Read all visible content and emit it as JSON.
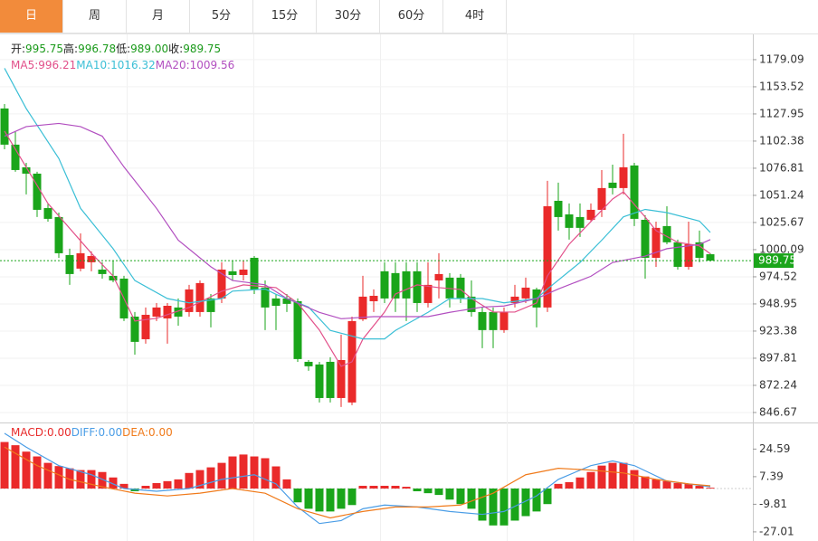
{
  "tabs": [
    "日",
    "周",
    "月",
    "5分",
    "15分",
    "30分",
    "60分",
    "4时"
  ],
  "selected_tab": 0,
  "chart_data": [
    {
      "type": "candlestick",
      "ohlc_legend": [
        {
          "label": "开:",
          "value": "995.75"
        },
        {
          "label": "高:",
          "value": "996.78"
        },
        {
          "label": "低:",
          "value": "989.00"
        },
        {
          "label": "收:",
          "value": "989.75"
        }
      ],
      "ohlc_legend_color": "#1a9a1a",
      "up_color": "#ea2a2a",
      "down_color": "#1aa51a",
      "open": [
        1133.1,
        1099.0,
        1077.7,
        1071.7,
        1039.3,
        1030.8,
        995.0,
        982.2,
        988.2,
        981.3,
        975.4,
        972.8,
        937.0,
        915.7,
        937.0,
        935.3,
        945.6,
        941.3,
        941.3,
        954.1,
        954.1,
        979.7,
        976.2,
        992.4,
        964.3,
        954.1,
        954.1,
        951.5,
        894.4,
        891.9,
        894.4,
        860.3,
        856.1,
        934.5,
        951.5,
        979.7,
        978.0,
        979.7,
        979.7,
        949.8,
        971.1,
        973.7,
        973.7,
        955.8,
        941.3,
        941.3,
        924.3,
        949.8,
        954.1,
        962.6,
        945.6,
        1046.1,
        1033.3,
        1030.8,
        1028.2,
        1037.6,
        1063.2,
        1058.1,
        1079.4,
        1028.2,
        992.4,
        1022.3,
        1007.0,
        983.9,
        1007.0,
        995.75
      ],
      "high": [
        1137.3,
        1111.8,
        1081.9,
        1073.4,
        1043.6,
        1035.0,
        1001.0,
        1015.4,
        998.4,
        988.2,
        989.9,
        975.4,
        941.3,
        945.6,
        949.8,
        949.8,
        954.1,
        966.9,
        971.1,
        958.3,
        988.2,
        989.9,
        989.9,
        994.1,
        971.1,
        958.3,
        958.3,
        954.1,
        896.1,
        894.4,
        898.7,
        920.0,
        937.0,
        975.4,
        962.6,
        988.2,
        988.2,
        988.2,
        988.2,
        988.2,
        996.7,
        978.0,
        977.1,
        971.1,
        945.6,
        945.6,
        945.6,
        966.9,
        973.7,
        964.3,
        1064.9,
        1063.2,
        1043.6,
        1043.6,
        1043.6,
        1075.1,
        1080.2,
        1109.2,
        1081.9,
        1032.5,
        1026.5,
        1041.0,
        1009.5,
        1026.5,
        1018.0,
        996.78
      ],
      "low": [
        1094.7,
        1073.4,
        1052.1,
        1030.8,
        1026.5,
        992.4,
        966.9,
        979.7,
        979.7,
        972.8,
        969.4,
        932.8,
        901.2,
        911.5,
        932.8,
        911.5,
        928.5,
        937.0,
        937.0,
        926.8,
        949.8,
        971.1,
        971.1,
        958.3,
        924.3,
        924.3,
        941.3,
        894.4,
        885.9,
        856.1,
        856.1,
        851.8,
        853.5,
        932.8,
        941.3,
        949.8,
        941.3,
        932.8,
        941.3,
        945.6,
        954.1,
        945.6,
        949.8,
        937.0,
        907.2,
        907.2,
        921.7,
        945.6,
        949.8,
        926.8,
        941.3,
        1018.0,
        1009.5,
        1012.1,
        1026.5,
        1030.8,
        1052.1,
        1052.1,
        1022.3,
        972.8,
        983.9,
        1005.2,
        981.3,
        981.3,
        988.2,
        989.0
      ],
      "close": [
        1099.0,
        1075.1,
        1071.7,
        1037.6,
        1029.1,
        996.7,
        977.1,
        996.7,
        994.1,
        977.1,
        971.1,
        935.3,
        913.2,
        938.7,
        945.6,
        947.2,
        937.0,
        962.6,
        968.6,
        941.3,
        981.3,
        976.2,
        981.3,
        962.6,
        945.6,
        947.2,
        949.0,
        897.0,
        890.2,
        860.3,
        860.3,
        896.1,
        932.8,
        955.8,
        956.6,
        954.1,
        954.1,
        954.1,
        949.8,
        966.9,
        977.1,
        954.1,
        954.1,
        941.3,
        924.3,
        924.3,
        941.3,
        955.8,
        964.3,
        945.6,
        1041.0,
        1030.8,
        1020.6,
        1020.6,
        1037.6,
        1058.1,
        1058.1,
        1077.7,
        1029.1,
        992.4,
        1020.6,
        1007.0,
        983.9,
        1005.2,
        992.4,
        989.75
      ],
      "lines": [
        {
          "color": "#e2508a",
          "legend": {
            "label": "MA5:",
            "value": 996.21
          },
          "x": [
            0,
            4,
            8,
            10,
            12,
            14,
            17,
            20,
            22,
            25,
            27,
            29,
            31,
            32,
            33,
            35,
            36,
            38,
            40,
            42,
            43,
            45,
            47,
            49,
            50,
            52,
            54,
            56,
            57,
            59,
            60,
            62,
            64,
            65
          ],
          "values": [
            1111.8,
            1043.6,
            996.7,
            975.4,
            932.8,
            935.4,
            945.6,
            960.9,
            966.9,
            964.3,
            949.8,
            924.3,
            890.2,
            894.4,
            915.8,
            941.3,
            958.3,
            966.9,
            964.3,
            962.6,
            954.1,
            941.3,
            941.3,
            949.8,
            975.4,
            1005.2,
            1026.5,
            1047.8,
            1054.6,
            1030.8,
            1018.0,
            1007.0,
            1003.6,
            996.2
          ]
        },
        {
          "color": "#3bbfd6",
          "legend": {
            "label": "MA10:",
            "value": 1016.32
          },
          "x": [
            0,
            2,
            5,
            7,
            10,
            12,
            15,
            17,
            20,
            21,
            24,
            25,
            28,
            30,
            33,
            35,
            36,
            39,
            41,
            44,
            46,
            49,
            50,
            53,
            55,
            57,
            59,
            61,
            64,
            65
          ],
          "values": [
            1171.0,
            1133.0,
            1086.0,
            1039.0,
            1001.0,
            971.0,
            954.0,
            950.0,
            954.0,
            961.0,
            963.0,
            958.0,
            946.0,
            924.0,
            916.0,
            916.0,
            924.0,
            941.0,
            954.0,
            954.0,
            950.0,
            954.0,
            963.0,
            988.0,
            1009.0,
            1031.0,
            1038.0,
            1035.0,
            1027.0,
            1016.3
          ]
        },
        {
          "color": "#b24fc0",
          "legend": {
            "label": "MA20:",
            "value": 1009.56
          },
          "x": [
            0,
            2,
            5,
            7,
            9,
            11,
            14,
            16,
            19,
            21,
            24,
            26,
            29,
            31,
            34,
            36,
            39,
            41,
            44,
            46,
            49,
            51,
            54,
            56,
            59,
            61,
            64,
            65
          ],
          "values": [
            1107.0,
            1116.0,
            1119.0,
            1116.0,
            1107.0,
            1078.0,
            1039.0,
            1009.0,
            984.0,
            971.0,
            967.0,
            954.0,
            941.0,
            935.0,
            937.0,
            937.0,
            937.0,
            941.0,
            946.0,
            947.0,
            954.0,
            963.0,
            975.0,
            988.0,
            994.0,
            1001.0,
            1005.0,
            1009.6
          ]
        }
      ],
      "last_price": 989.75,
      "last_price_color": "#1aa51a",
      "ylim": [
        836.4,
        1202.9
      ],
      "yticks": [
        846.67,
        872.24,
        897.81,
        923.38,
        948.95,
        974.52,
        1000.09,
        1025.67,
        1051.24,
        1076.81,
        1102.38,
        1127.95,
        1153.52,
        1179.09
      ],
      "grid": true
    },
    {
      "type": "bar",
      "legend": [
        {
          "label": "MACD:",
          "value": "0.00",
          "color": "#e82a2a"
        },
        {
          "label": "DIFF:",
          "value": "0.00",
          "color": "#4a9de6"
        },
        {
          "label": "DEA:",
          "value": "0.00",
          "color": "#f07a1a"
        }
      ],
      "up_color": "#ea2a2a",
      "down_color": "#1aa51a",
      "values": [
        29,
        27,
        23,
        20,
        16,
        14,
        12.6,
        11.5,
        11.5,
        10.3,
        6.9,
        2.9,
        -1.7,
        1.7,
        3.4,
        4.6,
        5.7,
        9.7,
        11.5,
        13.2,
        16,
        20,
        21.2,
        20,
        18.9,
        13.8,
        5.7,
        -8.6,
        -12.6,
        -14.3,
        -14.3,
        -12.6,
        -10.3,
        1.7,
        1.7,
        1.7,
        1.7,
        1.1,
        -1.7,
        -2.9,
        -4.0,
        -6.9,
        -9.7,
        -12.6,
        -20,
        -23,
        -23,
        -20,
        -17.2,
        -14.3,
        -9.7,
        2.9,
        4.0,
        6.9,
        10.3,
        14.3,
        16,
        16,
        11.5,
        7.5,
        5.7,
        4.6,
        3.4,
        2.9,
        1.7,
        0.5
      ],
      "lines": [
        {
          "color": "#4a9de6",
          "x": [
            0,
            2,
            5,
            8,
            11,
            14,
            17,
            20,
            23,
            25,
            27,
            29,
            31,
            33,
            35,
            38,
            41,
            44,
            46,
            49,
            51,
            54,
            56,
            58,
            61,
            65
          ],
          "values": [
            34.4,
            25.8,
            14.3,
            8.6,
            0,
            -1.7,
            0,
            5.7,
            8.6,
            2.9,
            -11.5,
            -21.8,
            -20,
            -12.6,
            -10.3,
            -11.5,
            -14.3,
            -16.1,
            -14.3,
            -4.6,
            5.7,
            14.3,
            17.2,
            14.3,
            4.6,
            1.1
          ]
        },
        {
          "color": "#f07a1a",
          "x": [
            0,
            3,
            6,
            9,
            12,
            15,
            18,
            21,
            24,
            27,
            30,
            33,
            36,
            39,
            42,
            45,
            48,
            51,
            54,
            57,
            60,
            63,
            65
          ],
          "values": [
            25.8,
            14.3,
            5.7,
            1.1,
            -2.9,
            -4.6,
            -2.9,
            0,
            -2.9,
            -12.6,
            -18.3,
            -14.3,
            -11.5,
            -11.5,
            -10.3,
            -2.9,
            8.6,
            12.6,
            11.5,
            9.7,
            5.7,
            2.9,
            1.7
          ]
        }
      ],
      "ylim": [
        -32.7,
        40.6
      ],
      "yticks": [
        -27.01,
        -9.81,
        7.39,
        24.59
      ]
    }
  ]
}
